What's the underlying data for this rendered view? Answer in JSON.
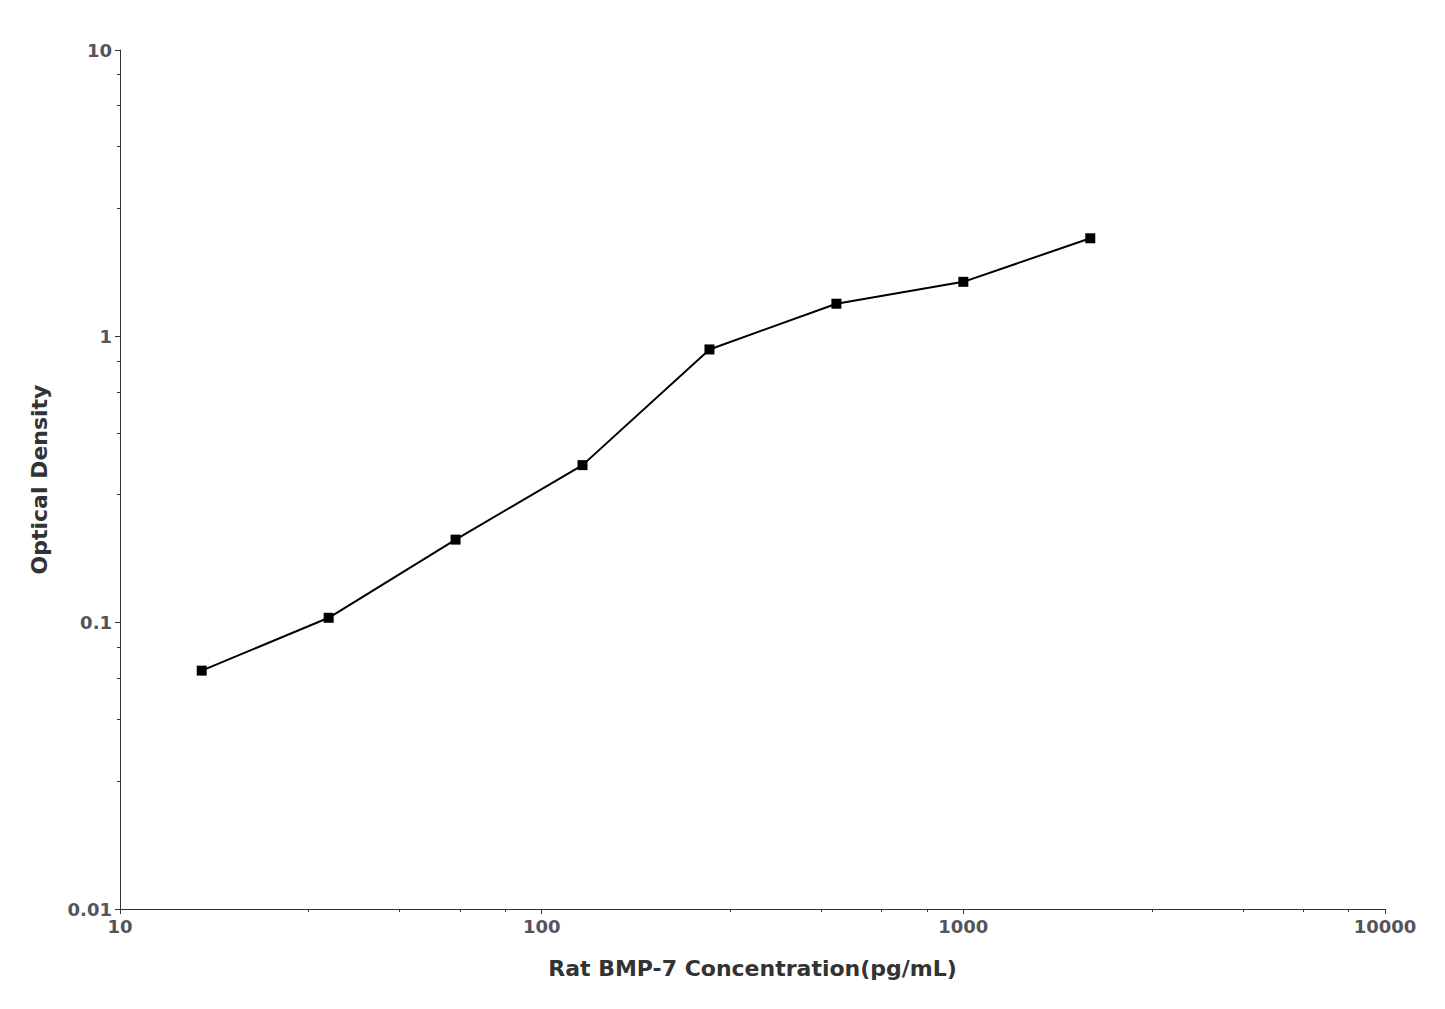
{
  "chart_data": {
    "type": "line",
    "x": [
      15.625,
      31.25,
      62.5,
      125,
      250,
      500,
      1000,
      2000
    ],
    "values": [
      0.068,
      0.104,
      0.195,
      0.355,
      0.9,
      1.3,
      1.55,
      2.2
    ],
    "xlabel": "Rat BMP-7 Concentration(pg/mL)",
    "ylabel": "Optical Density",
    "xlim": [
      10,
      10000
    ],
    "ylim": [
      0.01,
      10
    ],
    "xticks": [
      10,
      100,
      1000,
      10000
    ],
    "yticks": [
      0.01,
      0.1,
      1,
      10
    ],
    "log": true,
    "grid": false,
    "color": "#000000",
    "marker": "square"
  }
}
